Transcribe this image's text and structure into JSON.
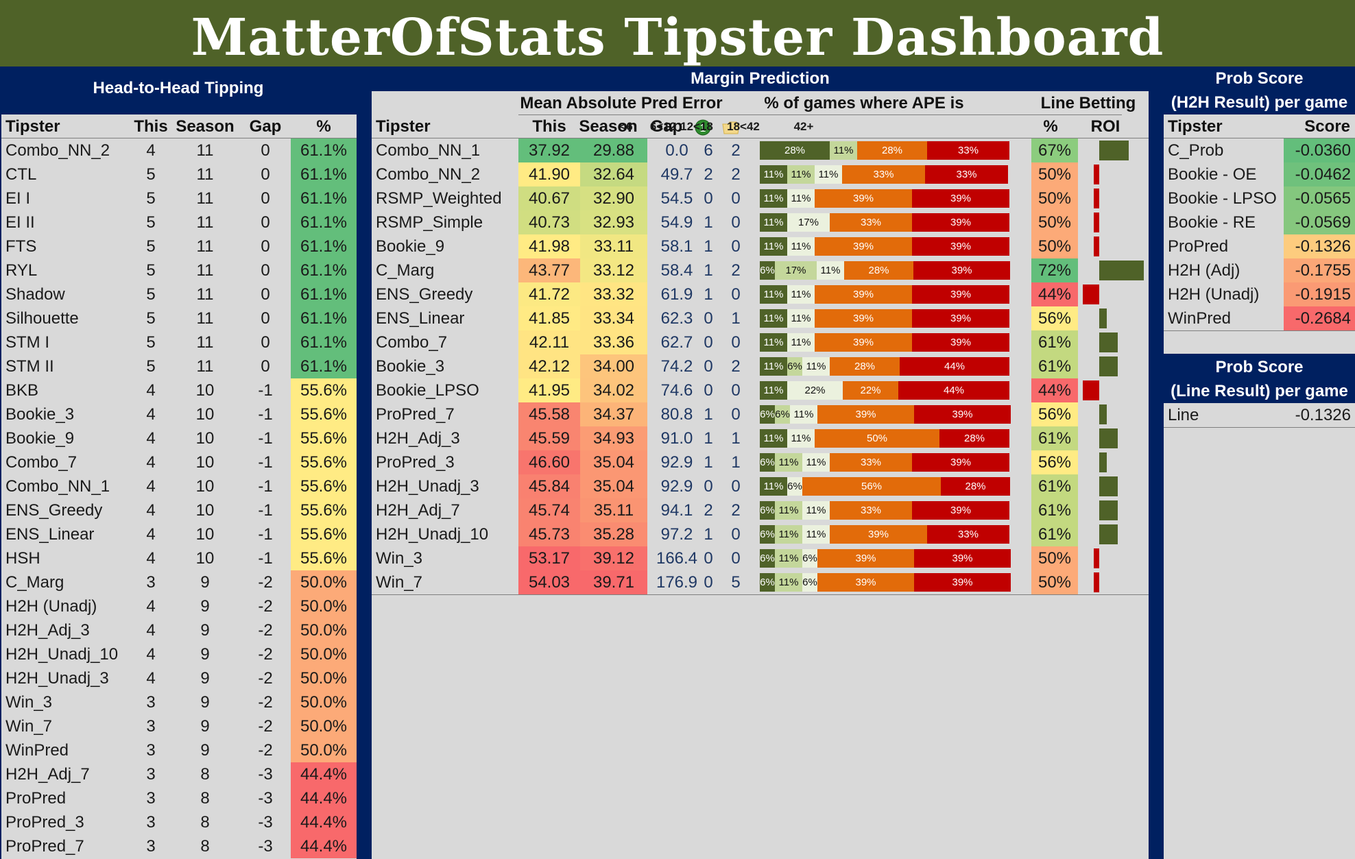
{
  "title": "MatterOfStats Tipster Dashboard",
  "colors": {
    "title_bg": "#4f6228",
    "navy": "#002060",
    "panel_bg": "#d9d9d9",
    "roi_positive": "#4f6228",
    "roi_negative": "#c00000"
  },
  "h2h": {
    "title": "Head-to-Head Tipping",
    "columns": [
      "Tipster",
      "This",
      "Season",
      "Gap",
      "%"
    ],
    "rows": [
      {
        "tipster": "Combo_NN_2",
        "this": "4",
        "season": "11",
        "gap": "0",
        "pct": "61.1%",
        "color": "#63be7b"
      },
      {
        "tipster": "CTL",
        "this": "5",
        "season": "11",
        "gap": "0",
        "pct": "61.1%",
        "color": "#63be7b"
      },
      {
        "tipster": "EI I",
        "this": "5",
        "season": "11",
        "gap": "0",
        "pct": "61.1%",
        "color": "#63be7b"
      },
      {
        "tipster": "EI II",
        "this": "5",
        "season": "11",
        "gap": "0",
        "pct": "61.1%",
        "color": "#63be7b"
      },
      {
        "tipster": "FTS",
        "this": "5",
        "season": "11",
        "gap": "0",
        "pct": "61.1%",
        "color": "#63be7b"
      },
      {
        "tipster": "RYL",
        "this": "5",
        "season": "11",
        "gap": "0",
        "pct": "61.1%",
        "color": "#63be7b"
      },
      {
        "tipster": "Shadow",
        "this": "5",
        "season": "11",
        "gap": "0",
        "pct": "61.1%",
        "color": "#63be7b"
      },
      {
        "tipster": "Silhouette",
        "this": "5",
        "season": "11",
        "gap": "0",
        "pct": "61.1%",
        "color": "#63be7b"
      },
      {
        "tipster": "STM I",
        "this": "5",
        "season": "11",
        "gap": "0",
        "pct": "61.1%",
        "color": "#63be7b"
      },
      {
        "tipster": "STM II",
        "this": "5",
        "season": "11",
        "gap": "0",
        "pct": "61.1%",
        "color": "#63be7b"
      },
      {
        "tipster": "BKB",
        "this": "4",
        "season": "10",
        "gap": "-1",
        "pct": "55.6%",
        "color": "#ffeb84"
      },
      {
        "tipster": "Bookie_3",
        "this": "4",
        "season": "10",
        "gap": "-1",
        "pct": "55.6%",
        "color": "#ffeb84"
      },
      {
        "tipster": "Bookie_9",
        "this": "4",
        "season": "10",
        "gap": "-1",
        "pct": "55.6%",
        "color": "#ffeb84"
      },
      {
        "tipster": "Combo_7",
        "this": "4",
        "season": "10",
        "gap": "-1",
        "pct": "55.6%",
        "color": "#ffeb84"
      },
      {
        "tipster": "Combo_NN_1",
        "this": "4",
        "season": "10",
        "gap": "-1",
        "pct": "55.6%",
        "color": "#ffeb84"
      },
      {
        "tipster": "ENS_Greedy",
        "this": "4",
        "season": "10",
        "gap": "-1",
        "pct": "55.6%",
        "color": "#ffeb84"
      },
      {
        "tipster": "ENS_Linear",
        "this": "4",
        "season": "10",
        "gap": "-1",
        "pct": "55.6%",
        "color": "#ffeb84"
      },
      {
        "tipster": "HSH",
        "this": "4",
        "season": "10",
        "gap": "-1",
        "pct": "55.6%",
        "color": "#ffeb84"
      },
      {
        "tipster": "C_Marg",
        "this": "3",
        "season": "9",
        "gap": "-2",
        "pct": "50.0%",
        "color": "#fcaa78"
      },
      {
        "tipster": "H2H (Unadj)",
        "this": "4",
        "season": "9",
        "gap": "-2",
        "pct": "50.0%",
        "color": "#fcaa78"
      },
      {
        "tipster": "H2H_Adj_3",
        "this": "4",
        "season": "9",
        "gap": "-2",
        "pct": "50.0%",
        "color": "#fcaa78"
      },
      {
        "tipster": "H2H_Unadj_10",
        "this": "4",
        "season": "9",
        "gap": "-2",
        "pct": "50.0%",
        "color": "#fcaa78"
      },
      {
        "tipster": "H2H_Unadj_3",
        "this": "4",
        "season": "9",
        "gap": "-2",
        "pct": "50.0%",
        "color": "#fcaa78"
      },
      {
        "tipster": "Win_3",
        "this": "3",
        "season": "9",
        "gap": "-2",
        "pct": "50.0%",
        "color": "#fcaa78"
      },
      {
        "tipster": "Win_7",
        "this": "3",
        "season": "9",
        "gap": "-2",
        "pct": "50.0%",
        "color": "#fcaa78"
      },
      {
        "tipster": "WinPred",
        "this": "3",
        "season": "9",
        "gap": "-2",
        "pct": "50.0%",
        "color": "#fcaa78"
      },
      {
        "tipster": "H2H_Adj_7",
        "this": "3",
        "season": "8",
        "gap": "-3",
        "pct": "44.4%",
        "color": "#f8696b"
      },
      {
        "tipster": "ProPred",
        "this": "3",
        "season": "8",
        "gap": "-3",
        "pct": "44.4%",
        "color": "#f8696b"
      },
      {
        "tipster": "ProPred_3",
        "this": "3",
        "season": "8",
        "gap": "-3",
        "pct": "44.4%",
        "color": "#f8696b"
      },
      {
        "tipster": "ProPred_7",
        "this": "3",
        "season": "8",
        "gap": "-3",
        "pct": "44.4%",
        "color": "#f8696b"
      }
    ]
  },
  "margin": {
    "title": "Margin Prediction",
    "mae_header": "Mean Absolute Pred Error",
    "ape_header": "% of games where APE is",
    "line_header": "Line Betting",
    "columns": {
      "tipster": "Tipster",
      "this": "This",
      "season": "Season",
      "gap": "Gap",
      "pct": "%",
      "roi": "ROI"
    },
    "ape_ranges": [
      "<6",
      "6<12",
      "12<18",
      "18<42",
      "42+"
    ],
    "ape_colors": [
      "#4f6228",
      "#c4d79b",
      "#ebf1de",
      "#e26b0a",
      "#c00000"
    ],
    "rows": [
      {
        "tipster": "Combo_NN_1",
        "this": "37.92",
        "season": "29.88",
        "this_color": "#63be7b",
        "season_color": "#63be7b",
        "gap": "0.0",
        "wins": "6",
        "folds": "2",
        "ape": [
          28,
          11,
          0,
          28,
          33
        ],
        "ape_labels": [
          "28%",
          "11%",
          "0%",
          "28%",
          "33%"
        ],
        "line_pct": "67%",
        "line_color": "#8ccc7e",
        "roi": 0.16
      },
      {
        "tipster": "Combo_NN_2",
        "this": "41.90",
        "season": "32.64",
        "this_color": "#ffeb84",
        "season_color": "#c5da81",
        "gap": "49.7",
        "wins": "2",
        "folds": "2",
        "ape": [
          11,
          11,
          11,
          33,
          33
        ],
        "ape_labels": [
          "11%",
          "11%",
          "11%",
          "33%",
          "33%"
        ],
        "line_pct": "50%",
        "line_color": "#fcaa78",
        "roi": -0.03
      },
      {
        "tipster": "RSMP_Weighted",
        "this": "40.67",
        "season": "32.90",
        "this_color": "#cfdd81",
        "season_color": "#d6e082",
        "gap": "54.5",
        "wins": "0",
        "folds": "0",
        "ape": [
          11,
          0,
          11,
          39,
          39
        ],
        "ape_labels": [
          "11%",
          "0%",
          "11%",
          "39%",
          "39%"
        ],
        "line_pct": "50%",
        "line_color": "#fcaa78",
        "roi": -0.03
      },
      {
        "tipster": "RSMP_Simple",
        "this": "40.73",
        "season": "32.93",
        "this_color": "#d1de81",
        "season_color": "#d8e182",
        "gap": "54.9",
        "wins": "1",
        "folds": "0",
        "ape": [
          11,
          0,
          17,
          33,
          39
        ],
        "ape_labels": [
          "11%",
          "0%",
          "17%",
          "33%",
          "39%"
        ],
        "line_pct": "50%",
        "line_color": "#fcaa78",
        "roi": -0.03
      },
      {
        "tipster": "Bookie_9",
        "this": "41.98",
        "season": "33.11",
        "this_color": "#ffeb84",
        "season_color": "#f1e783",
        "gap": "58.1",
        "wins": "1",
        "folds": "0",
        "ape": [
          11,
          0,
          11,
          39,
          39
        ],
        "ape_labels": [
          "11%",
          "0%",
          "11%",
          "39%",
          "39%"
        ],
        "line_pct": "50%",
        "line_color": "#fcaa78",
        "roi": -0.03
      },
      {
        "tipster": "C_Marg",
        "this": "43.77",
        "season": "33.12",
        "this_color": "#fcb77a",
        "season_color": "#f3e783",
        "gap": "58.4",
        "wins": "1",
        "folds": "2",
        "ape": [
          6,
          17,
          11,
          28,
          39
        ],
        "ape_labels": [
          "6%",
          "17%",
          "11%",
          "28%",
          "39%"
        ],
        "line_pct": "72%",
        "line_color": "#63be7b",
        "roi": 0.24
      },
      {
        "tipster": "ENS_Greedy",
        "this": "41.72",
        "season": "33.32",
        "this_color": "#fce983",
        "season_color": "#ffe583",
        "gap": "61.9",
        "wins": "1",
        "folds": "0",
        "ape": [
          11,
          0,
          11,
          39,
          39
        ],
        "ape_labels": [
          "11%",
          "0%",
          "11%",
          "39%",
          "39%"
        ],
        "line_pct": "44%",
        "line_color": "#f8696b",
        "roi": -0.09
      },
      {
        "tipster": "ENS_Linear",
        "this": "41.85",
        "season": "33.34",
        "this_color": "#ffea84",
        "season_color": "#ffe483",
        "gap": "62.3",
        "wins": "0",
        "folds": "1",
        "ape": [
          11,
          0,
          11,
          39,
          39
        ],
        "ape_labels": [
          "11%",
          "0%",
          "11%",
          "39%",
          "39%"
        ],
        "line_pct": "56%",
        "line_color": "#ffeb84",
        "roi": 0.04
      },
      {
        "tipster": "Combo_7",
        "this": "42.11",
        "season": "33.36",
        "this_color": "#ffe483",
        "season_color": "#ffe483",
        "gap": "62.7",
        "wins": "0",
        "folds": "0",
        "ape": [
          11,
          0,
          11,
          39,
          39
        ],
        "ape_labels": [
          "11%",
          "0%",
          "11%",
          "39%",
          "39%"
        ],
        "line_pct": "61%",
        "line_color": "#c3d980",
        "roi": 0.1
      },
      {
        "tipster": "Bookie_3",
        "this": "42.12",
        "season": "34.00",
        "this_color": "#ffe483",
        "season_color": "#fdc57c",
        "gap": "74.2",
        "wins": "0",
        "folds": "2",
        "ape": [
          11,
          6,
          11,
          28,
          44
        ],
        "ape_labels": [
          "11%",
          "6%",
          "11%",
          "28%",
          "44%"
        ],
        "line_pct": "61%",
        "line_color": "#c3d980",
        "roi": 0.1
      },
      {
        "tipster": "Bookie_LPSO",
        "this": "41.95",
        "season": "34.02",
        "this_color": "#ffeb84",
        "season_color": "#fdc47c",
        "gap": "74.6",
        "wins": "0",
        "folds": "0",
        "ape": [
          11,
          0,
          22,
          22,
          44
        ],
        "ape_labels": [
          "11%",
          "0%",
          "22%",
          "22%",
          "44%"
        ],
        "line_pct": "44%",
        "line_color": "#f8696b",
        "roi": -0.09
      },
      {
        "tipster": "ProPred_7",
        "this": "45.58",
        "season": "34.37",
        "this_color": "#f98570",
        "season_color": "#fcb478",
        "gap": "80.8",
        "wins": "1",
        "folds": "0",
        "ape": [
          6,
          6,
          11,
          39,
          39
        ],
        "ape_labels": [
          "6%",
          "6%",
          "11%",
          "39%",
          "39%"
        ],
        "line_pct": "56%",
        "line_color": "#ffeb84",
        "roi": 0.04
      },
      {
        "tipster": "H2H_Adj_3",
        "this": "45.59",
        "season": "34.93",
        "this_color": "#f98570",
        "season_color": "#fb9c74",
        "gap": "91.0",
        "wins": "1",
        "folds": "1",
        "ape": [
          11,
          0,
          11,
          50,
          28
        ],
        "ape_labels": [
          "11%",
          "0%",
          "11%",
          "50%",
          "28%"
        ],
        "line_pct": "61%",
        "line_color": "#c3d980",
        "roi": 0.1
      },
      {
        "tipster": "ProPred_3",
        "this": "46.60",
        "season": "35.04",
        "this_color": "#f8756d",
        "season_color": "#fb9773",
        "gap": "92.9",
        "wins": "1",
        "folds": "1",
        "ape": [
          6,
          11,
          11,
          33,
          39
        ],
        "ape_labels": [
          "6%",
          "11%",
          "11%",
          "33%",
          "39%"
        ],
        "line_pct": "56%",
        "line_color": "#ffeb84",
        "roi": 0.04
      },
      {
        "tipster": "H2H_Unadj_3",
        "this": "45.84",
        "season": "35.04",
        "this_color": "#f98170",
        "season_color": "#fb9773",
        "gap": "92.9",
        "wins": "0",
        "folds": "0",
        "ape": [
          11,
          0,
          6,
          56,
          28
        ],
        "ape_labels": [
          "11%",
          "0%",
          "6%",
          "56%",
          "28%"
        ],
        "line_pct": "61%",
        "line_color": "#c3d980",
        "roi": 0.1
      },
      {
        "tipster": "H2H_Adj_7",
        "this": "45.74",
        "season": "35.11",
        "this_color": "#f98370",
        "season_color": "#fa9472",
        "gap": "94.1",
        "wins": "2",
        "folds": "2",
        "ape": [
          6,
          11,
          11,
          33,
          39
        ],
        "ape_labels": [
          "6%",
          "11%",
          "11%",
          "33%",
          "39%"
        ],
        "line_pct": "61%",
        "line_color": "#c3d980",
        "roi": 0.1
      },
      {
        "tipster": "H2H_Unadj_10",
        "this": "45.73",
        "season": "35.28",
        "this_color": "#f98370",
        "season_color": "#fa8c71",
        "gap": "97.2",
        "wins": "1",
        "folds": "0",
        "ape": [
          6,
          11,
          11,
          39,
          33
        ],
        "ape_labels": [
          "6%",
          "11%",
          "11%",
          "39%",
          "33%"
        ],
        "line_pct": "61%",
        "line_color": "#c3d980",
        "roi": 0.1
      },
      {
        "tipster": "Win_3",
        "this": "53.17",
        "season": "39.12",
        "this_color": "#f8696b",
        "season_color": "#f8706c",
        "gap": "166.4",
        "wins": "0",
        "folds": "0",
        "ape": [
          6,
          11,
          6,
          39,
          39
        ],
        "ape_labels": [
          "6%",
          "11%",
          "6%",
          "39%",
          "39%"
        ],
        "line_pct": "50%",
        "line_color": "#fcaa78",
        "roi": -0.03
      },
      {
        "tipster": "Win_7",
        "this": "54.03",
        "season": "39.71",
        "this_color": "#f8696b",
        "season_color": "#f8696b",
        "gap": "176.9",
        "wins": "0",
        "folds": "5",
        "ape": [
          6,
          11,
          6,
          39,
          39
        ],
        "ape_labels": [
          "6%",
          "11%",
          "6%",
          "39%",
          "39%"
        ],
        "line_pct": "50%",
        "line_color": "#fcaa78",
        "roi": -0.03
      }
    ]
  },
  "prob_h2h": {
    "title_line1": "Prob Score",
    "title_line2": "(H2H Result) per game",
    "columns": [
      "Tipster",
      "Score"
    ],
    "rows": [
      {
        "tipster": "C_Prob",
        "score": "-0.0360",
        "color": "#63be7b"
      },
      {
        "tipster": "Bookie - OE",
        "score": "-0.0462",
        "color": "#6fc17c"
      },
      {
        "tipster": "Bookie - LPSO",
        "score": "-0.0565",
        "color": "#84c77e"
      },
      {
        "tipster": "Bookie - RE",
        "score": "-0.0569",
        "color": "#86c77e"
      },
      {
        "tipster": "ProPred",
        "score": "-0.1326",
        "color": "#fdcc7e"
      },
      {
        "tipster": "H2H (Adj)",
        "score": "-0.1755",
        "color": "#fba777"
      },
      {
        "tipster": "H2H (Unadj)",
        "score": "-0.1915",
        "color": "#fa9a74"
      },
      {
        "tipster": "WinPred",
        "score": "-0.2684",
        "color": "#f8696b"
      }
    ]
  },
  "prob_line": {
    "title_line1": "Prob Score",
    "title_line2": "(Line Result) per game",
    "rows": [
      {
        "tipster": "Line",
        "score": "-0.1326"
      }
    ]
  }
}
